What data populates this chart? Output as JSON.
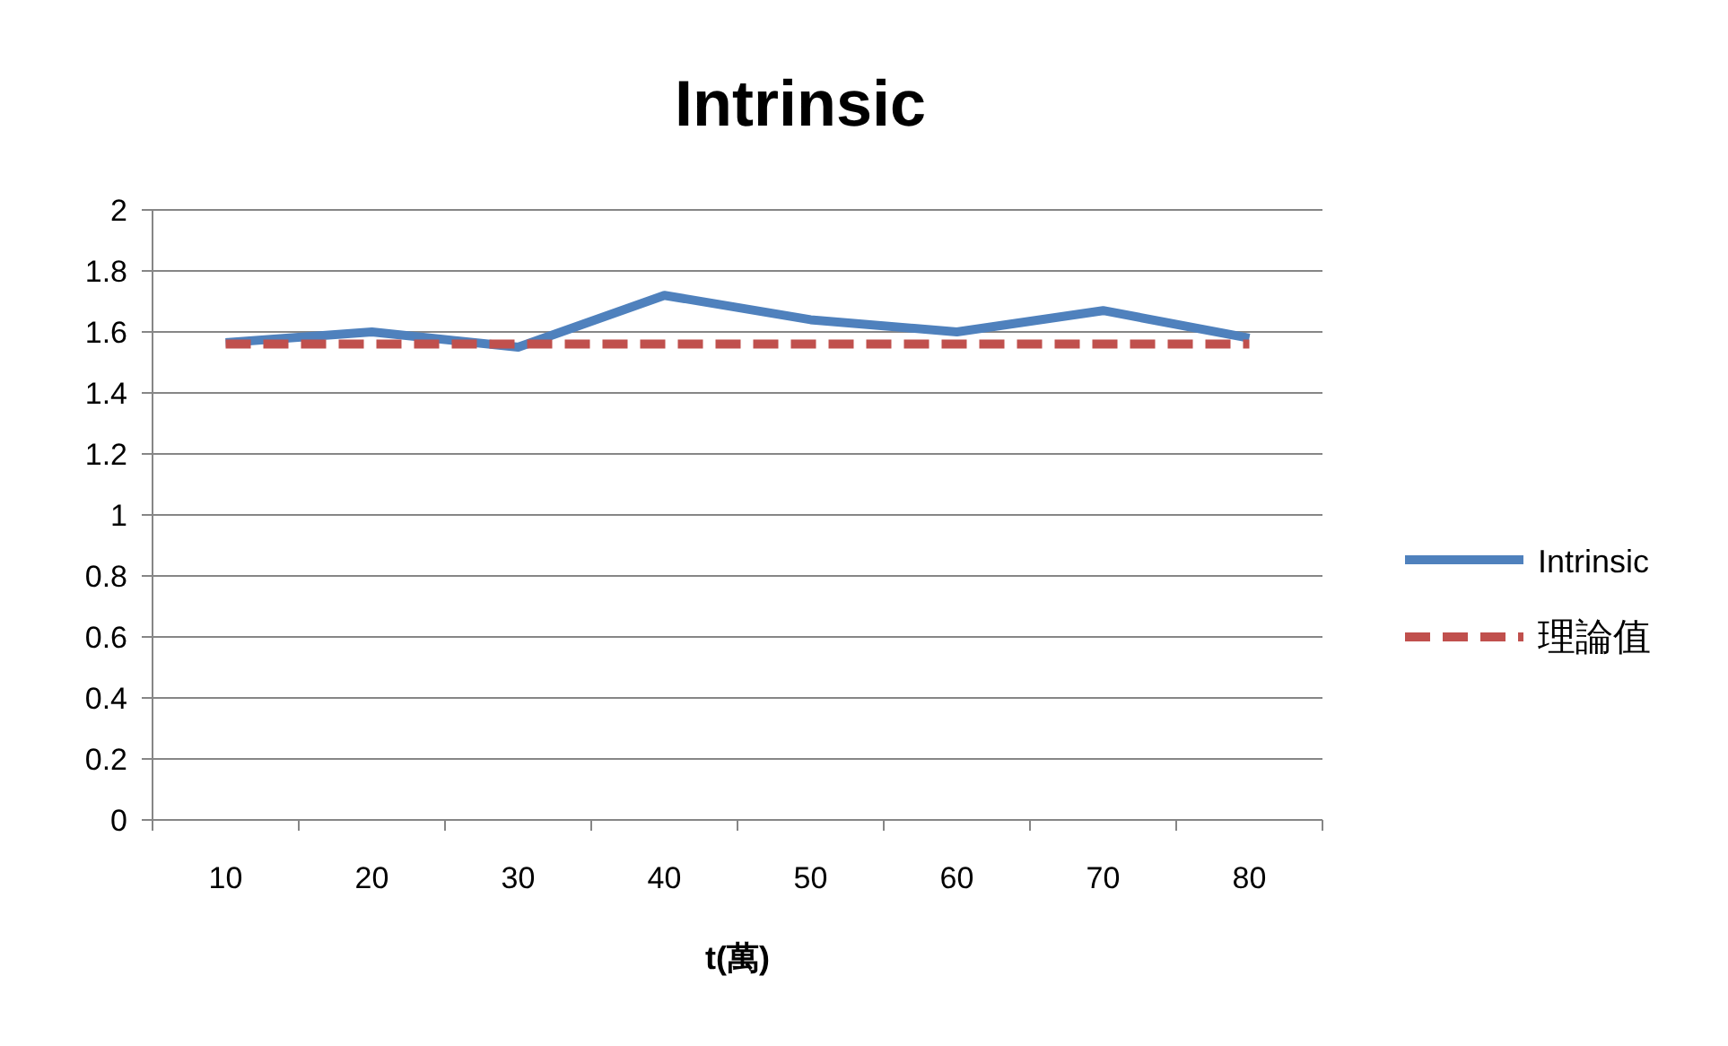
{
  "chart_data": {
    "type": "line",
    "title": "Intrinsic",
    "xlabel": "t(萬)",
    "categories": [
      "10",
      "20",
      "30",
      "40",
      "50",
      "60",
      "70",
      "80"
    ],
    "series": [
      {
        "name": "Intrinsic",
        "color": "#4f81bd",
        "line_style": "solid",
        "values": [
          1.565,
          1.6,
          1.55,
          1.72,
          1.64,
          1.6,
          1.67,
          1.58
        ]
      },
      {
        "name": "理論值",
        "color": "#c0504d",
        "line_style": "dashed",
        "values": [
          1.56,
          1.56,
          1.56,
          1.56,
          1.56,
          1.56,
          1.56,
          1.56
        ]
      }
    ],
    "ylim": [
      0,
      2
    ],
    "yticks": [
      0,
      0.2,
      0.4,
      0.6,
      0.8,
      1,
      1.2,
      1.4,
      1.6,
      1.8,
      2
    ],
    "grid": "y",
    "legend": "right",
    "marker": "none"
  }
}
